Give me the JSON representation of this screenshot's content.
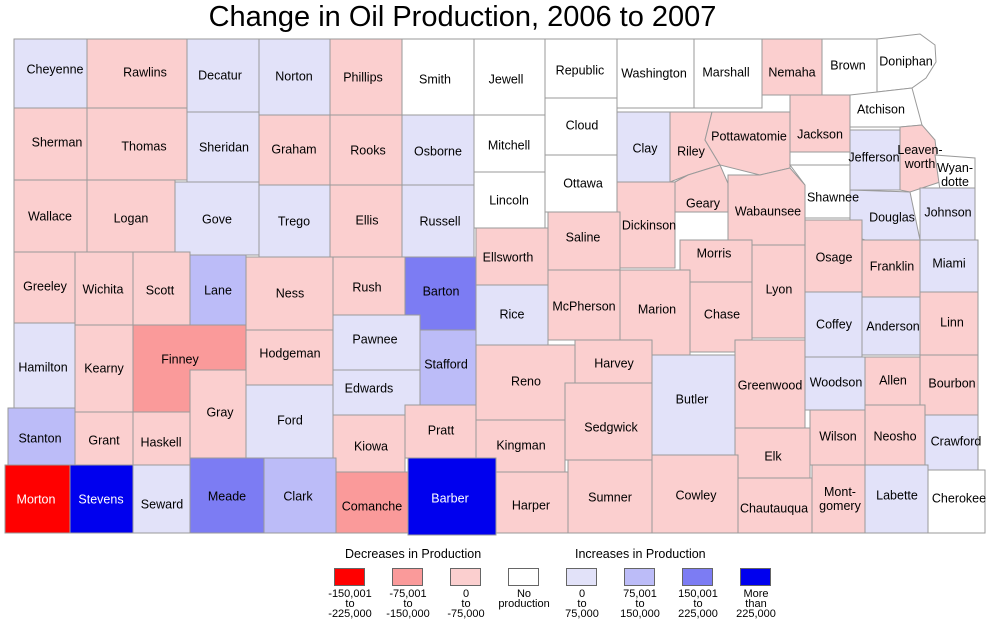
{
  "title": "Change in Oil Production, 2006 to 2007",
  "colors": {
    "d150_225": "#ff0000",
    "d75_150": "#fa9a9a",
    "d0_75": "#fbcfcf",
    "none": "#ffffff",
    "i0_75": "#e2e2f9",
    "i75_150": "#bcbcf8",
    "i150_225": "#7c7cf3",
    "i225": "#0000ee"
  },
  "counties": [
    {
      "name": "Cheyenne",
      "cls": "d0_75_i",
      "c": "i0_75"
    },
    {
      "name": "Rawlins",
      "c": "d0_75"
    },
    {
      "name": "Decatur",
      "c": "i0_75"
    },
    {
      "name": "Norton",
      "c": "i0_75"
    },
    {
      "name": "Phillips",
      "c": "d0_75"
    },
    {
      "name": "Smith",
      "c": "none"
    },
    {
      "name": "Jewell",
      "c": "none"
    },
    {
      "name": "Republic",
      "c": "none"
    },
    {
      "name": "Washington",
      "c": "none"
    },
    {
      "name": "Marshall",
      "c": "none"
    },
    {
      "name": "Nemaha",
      "c": "d0_75"
    },
    {
      "name": "Brown",
      "c": "none"
    },
    {
      "name": "Doniphan",
      "c": "none"
    },
    {
      "name": "Atchison",
      "c": "none"
    },
    {
      "name": "Sherman",
      "c": "d0_75"
    },
    {
      "name": "Thomas",
      "c": "d0_75"
    },
    {
      "name": "Sheridan",
      "c": "i0_75"
    },
    {
      "name": "Graham",
      "c": "d0_75"
    },
    {
      "name": "Rooks",
      "c": "d0_75"
    },
    {
      "name": "Osborne",
      "c": "i0_75"
    },
    {
      "name": "Mitchell",
      "c": "none"
    },
    {
      "name": "Cloud",
      "c": "none"
    },
    {
      "name": "Clay",
      "c": "i0_75"
    },
    {
      "name": "Riley",
      "c": "d0_75"
    },
    {
      "name": "Pottawatomie",
      "c": "d0_75"
    },
    {
      "name": "Jackson",
      "c": "d0_75"
    },
    {
      "name": "Jefferson",
      "c": "i0_75"
    },
    {
      "name": "Leaven-worth",
      "c": "d0_75"
    },
    {
      "name": "Wyan-dotte",
      "c": "none"
    },
    {
      "name": "Wallace",
      "c": "d0_75"
    },
    {
      "name": "Logan",
      "c": "d0_75"
    },
    {
      "name": "Gove",
      "c": "i0_75"
    },
    {
      "name": "Trego",
      "c": "i0_75"
    },
    {
      "name": "Ellis",
      "c": "d0_75"
    },
    {
      "name": "Russell",
      "c": "i0_75"
    },
    {
      "name": "Lincoln",
      "c": "none"
    },
    {
      "name": "Ottawa",
      "c": "none"
    },
    {
      "name": "Dickinson",
      "c": "d0_75"
    },
    {
      "name": "Geary",
      "c": "d0_75"
    },
    {
      "name": "Wabaunsee",
      "c": "d0_75"
    },
    {
      "name": "Shawnee",
      "c": "none"
    },
    {
      "name": "Douglas",
      "c": "i0_75"
    },
    {
      "name": "Johnson",
      "c": "i0_75"
    },
    {
      "name": "Greeley",
      "c": "d0_75"
    },
    {
      "name": "Wichita",
      "c": "d0_75"
    },
    {
      "name": "Scott",
      "c": "d0_75"
    },
    {
      "name": "Lane",
      "c": "i75_150"
    },
    {
      "name": "Ness",
      "c": "d0_75"
    },
    {
      "name": "Rush",
      "c": "d0_75"
    },
    {
      "name": "Barton",
      "c": "i150_225"
    },
    {
      "name": "Ellsworth",
      "c": "d0_75"
    },
    {
      "name": "Saline",
      "c": "d0_75"
    },
    {
      "name": "Morris",
      "c": "d0_75"
    },
    {
      "name": "Lyon",
      "c": "d0_75"
    },
    {
      "name": "Osage",
      "c": "d0_75"
    },
    {
      "name": "Franklin",
      "c": "d0_75"
    },
    {
      "name": "Miami",
      "c": "i0_75"
    },
    {
      "name": "Hamilton",
      "c": "i0_75"
    },
    {
      "name": "Kearny",
      "c": "d0_75"
    },
    {
      "name": "Finney",
      "c": "d75_150"
    },
    {
      "name": "Hodgeman",
      "c": "d0_75"
    },
    {
      "name": "Pawnee",
      "c": "i0_75"
    },
    {
      "name": "Stafford",
      "c": "i75_150"
    },
    {
      "name": "Rice",
      "c": "i0_75"
    },
    {
      "name": "McPherson",
      "c": "d0_75"
    },
    {
      "name": "Marion",
      "c": "d0_75"
    },
    {
      "name": "Chase",
      "c": "d0_75"
    },
    {
      "name": "Coffey",
      "c": "i0_75"
    },
    {
      "name": "Anderson",
      "c": "i0_75"
    },
    {
      "name": "Linn",
      "c": "d0_75"
    },
    {
      "name": "Gray",
      "c": "d0_75"
    },
    {
      "name": "Edwards",
      "c": "i0_75"
    },
    {
      "name": "Reno",
      "c": "d0_75"
    },
    {
      "name": "Harvey",
      "c": "d0_75"
    },
    {
      "name": "Butler",
      "c": "i0_75"
    },
    {
      "name": "Greenwood",
      "c": "d0_75"
    },
    {
      "name": "Woodson",
      "c": "i0_75"
    },
    {
      "name": "Allen",
      "c": "d0_75"
    },
    {
      "name": "Bourbon",
      "c": "d0_75"
    },
    {
      "name": "Stanton",
      "c": "i75_150"
    },
    {
      "name": "Grant",
      "c": "d0_75"
    },
    {
      "name": "Haskell",
      "c": "d0_75"
    },
    {
      "name": "Ford",
      "c": "i0_75"
    },
    {
      "name": "Kiowa",
      "c": "d0_75"
    },
    {
      "name": "Pratt",
      "c": "d0_75"
    },
    {
      "name": "Kingman",
      "c": "d0_75"
    },
    {
      "name": "Sedgwick",
      "c": "d0_75"
    },
    {
      "name": "Elk",
      "c": "d0_75"
    },
    {
      "name": "Wilson",
      "c": "d0_75"
    },
    {
      "name": "Neosho",
      "c": "d0_75"
    },
    {
      "name": "Crawford",
      "c": "i0_75"
    },
    {
      "name": "Morton",
      "c": "d150_225"
    },
    {
      "name": "Stevens",
      "c": "i225"
    },
    {
      "name": "Seward",
      "c": "i0_75"
    },
    {
      "name": "Meade",
      "c": "i150_225"
    },
    {
      "name": "Clark",
      "c": "i75_150"
    },
    {
      "name": "Comanche",
      "c": "d75_150"
    },
    {
      "name": "Barber",
      "c": "i225"
    },
    {
      "name": "Harper",
      "c": "d0_75"
    },
    {
      "name": "Sumner",
      "c": "d0_75"
    },
    {
      "name": "Cowley",
      "c": "d0_75"
    },
    {
      "name": "Chautauqua",
      "c": "d0_75"
    },
    {
      "name": "Mont-gomery",
      "c": "d0_75"
    },
    {
      "name": "Labette",
      "c": "i0_75"
    },
    {
      "name": "Cherokee",
      "c": "none"
    }
  ],
  "legend": {
    "decreases_heading": "Decreases in Production",
    "increases_heading": "Increases in Production",
    "items": [
      {
        "key": "d150_225",
        "label": "-150,001\nto\n-225,000"
      },
      {
        "key": "d75_150",
        "label": "-75,001\nto\n-150,000"
      },
      {
        "key": "d0_75",
        "label": "0\nto\n-75,000"
      },
      {
        "key": "none",
        "label": "No\nproduction"
      },
      {
        "key": "i0_75",
        "label": "0\nto\n75,000"
      },
      {
        "key": "i75_150",
        "label": "75,001\nto\n150,000"
      },
      {
        "key": "i150_225",
        "label": "150,001\nto\n225,000"
      },
      {
        "key": "i225",
        "label": "More\nthan\n225,000"
      }
    ]
  }
}
